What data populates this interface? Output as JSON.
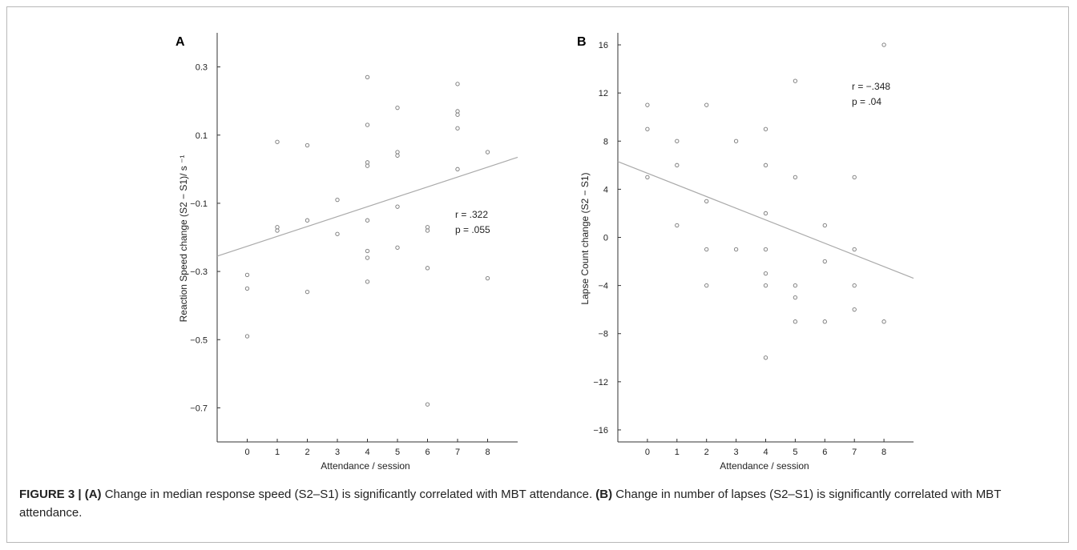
{
  "figure": {
    "caption": {
      "figure_label": "FIGURE 3 |",
      "a_marker": "(A)",
      "a_text": "Change in median response speed (S2–S1) is significantly correlated with MBT attendance.",
      "b_marker": "(B)",
      "b_text": "Change in number of lapses (S2–S1) is significantly correlated with MBT attendance."
    }
  },
  "chart_data": [
    {
      "panel": "A",
      "type": "scatter",
      "xlabel": "Attendance / session",
      "ylabel": "Reaction Speed change (S2 − S1)/ s ⁻¹",
      "xlim": [
        -1,
        9
      ],
      "ylim": [
        -0.8,
        0.4
      ],
      "xticks": [
        0,
        1,
        2,
        3,
        4,
        5,
        6,
        7,
        8
      ],
      "yticks": [
        -0.7,
        -0.5,
        -0.3,
        -0.1,
        0.1,
        0.3
      ],
      "ytick_labels": [
        "−0.7",
        "−0.5",
        "−0.3",
        "−0.1",
        "0.1",
        "0.3"
      ],
      "grid": false,
      "points": [
        {
          "x": 0,
          "y": -0.31
        },
        {
          "x": 0,
          "y": -0.35
        },
        {
          "x": 0,
          "y": -0.49
        },
        {
          "x": 1,
          "y": 0.08
        },
        {
          "x": 1,
          "y": -0.17
        },
        {
          "x": 1,
          "y": -0.18
        },
        {
          "x": 2,
          "y": 0.07
        },
        {
          "x": 2,
          "y": -0.15
        },
        {
          "x": 2,
          "y": -0.36
        },
        {
          "x": 3,
          "y": -0.09
        },
        {
          "x": 3,
          "y": -0.19
        },
        {
          "x": 4,
          "y": 0.27
        },
        {
          "x": 4,
          "y": 0.13
        },
        {
          "x": 4,
          "y": 0.02
        },
        {
          "x": 4,
          "y": 0.01
        },
        {
          "x": 4,
          "y": -0.15
        },
        {
          "x": 4,
          "y": -0.24
        },
        {
          "x": 4,
          "y": -0.26
        },
        {
          "x": 4,
          "y": -0.33
        },
        {
          "x": 5,
          "y": 0.18
        },
        {
          "x": 5,
          "y": 0.05
        },
        {
          "x": 5,
          "y": 0.04
        },
        {
          "x": 5,
          "y": -0.11
        },
        {
          "x": 5,
          "y": -0.23
        },
        {
          "x": 6,
          "y": -0.17
        },
        {
          "x": 6,
          "y": -0.18
        },
        {
          "x": 6,
          "y": -0.29
        },
        {
          "x": 6,
          "y": -0.69
        },
        {
          "x": 7,
          "y": 0.25
        },
        {
          "x": 7,
          "y": 0.17
        },
        {
          "x": 7,
          "y": 0.16
        },
        {
          "x": 7,
          "y": 0.12
        },
        {
          "x": 7,
          "y": 0.0
        },
        {
          "x": 8,
          "y": 0.05
        },
        {
          "x": 8,
          "y": -0.32
        }
      ],
      "fit_line": {
        "x": [
          -1,
          9
        ],
        "y": [
          -0.255,
          0.035
        ]
      },
      "annotation": {
        "r": "r = .322",
        "p": "p = .055"
      },
      "colors": {
        "marker": "#777777",
        "fit": "#aaaaaa",
        "axis": "#333333"
      }
    },
    {
      "panel": "B",
      "type": "scatter",
      "xlabel": "Attendance / session",
      "ylabel": "Lapse Count change (S2 − S1)",
      "xlim": [
        -1,
        9
      ],
      "ylim": [
        -17,
        17
      ],
      "xticks": [
        0,
        1,
        2,
        3,
        4,
        5,
        6,
        7,
        8
      ],
      "yticks": [
        -16,
        -12,
        -8,
        -4,
        0,
        4,
        8,
        12,
        16
      ],
      "ytick_labels": [
        "−16",
        "−12",
        "−8",
        "−4",
        "0",
        "4",
        "8",
        "12",
        "16"
      ],
      "grid": false,
      "points": [
        {
          "x": 0,
          "y": 11
        },
        {
          "x": 0,
          "y": 9
        },
        {
          "x": 0,
          "y": 5
        },
        {
          "x": 1,
          "y": 8
        },
        {
          "x": 1,
          "y": 6
        },
        {
          "x": 1,
          "y": 1
        },
        {
          "x": 2,
          "y": 11
        },
        {
          "x": 2,
          "y": 3
        },
        {
          "x": 2,
          "y": -1
        },
        {
          "x": 2,
          "y": -4
        },
        {
          "x": 3,
          "y": 8
        },
        {
          "x": 3,
          "y": -1
        },
        {
          "x": 4,
          "y": 9
        },
        {
          "x": 4,
          "y": 6
        },
        {
          "x": 4,
          "y": 2
        },
        {
          "x": 4,
          "y": -1
        },
        {
          "x": 4,
          "y": -3
        },
        {
          "x": 4,
          "y": -4
        },
        {
          "x": 4,
          "y": -10
        },
        {
          "x": 5,
          "y": 13
        },
        {
          "x": 5,
          "y": 5
        },
        {
          "x": 5,
          "y": -4
        },
        {
          "x": 5,
          "y": -5
        },
        {
          "x": 5,
          "y": -7
        },
        {
          "x": 6,
          "y": 1
        },
        {
          "x": 6,
          "y": -2
        },
        {
          "x": 6,
          "y": -7
        },
        {
          "x": 7,
          "y": 5
        },
        {
          "x": 7,
          "y": -1
        },
        {
          "x": 7,
          "y": -4
        },
        {
          "x": 7,
          "y": -6
        },
        {
          "x": 8,
          "y": 16
        },
        {
          "x": 8,
          "y": -7
        }
      ],
      "fit_line": {
        "x": [
          -1,
          9
        ],
        "y": [
          6.3,
          -3.4
        ]
      },
      "annotation": {
        "r": "r = −.348",
        "p": "p = .04"
      },
      "colors": {
        "marker": "#777777",
        "fit": "#aaaaaa",
        "axis": "#333333"
      }
    }
  ]
}
